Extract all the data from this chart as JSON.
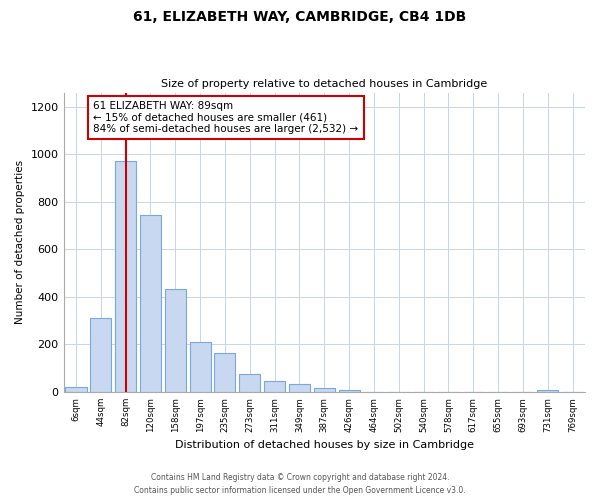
{
  "title": "61, ELIZABETH WAY, CAMBRIDGE, CB4 1DB",
  "subtitle": "Size of property relative to detached houses in Cambridge",
  "xlabel": "Distribution of detached houses by size in Cambridge",
  "ylabel": "Number of detached properties",
  "bar_labels": [
    "6sqm",
    "44sqm",
    "82sqm",
    "120sqm",
    "158sqm",
    "197sqm",
    "235sqm",
    "273sqm",
    "311sqm",
    "349sqm",
    "387sqm",
    "426sqm",
    "464sqm",
    "502sqm",
    "540sqm",
    "578sqm",
    "617sqm",
    "655sqm",
    "693sqm",
    "731sqm",
    "769sqm"
  ],
  "bar_values": [
    20,
    310,
    970,
    745,
    435,
    210,
    165,
    75,
    48,
    32,
    18,
    8,
    0,
    0,
    0,
    0,
    0,
    0,
    0,
    8,
    0
  ],
  "bar_color": "#c8d8f0",
  "bar_edge_color": "#7aa8d8",
  "property_line_index": 2,
  "property_line_color": "#cc0000",
  "annotation_line1": "61 ELIZABETH WAY: 89sqm",
  "annotation_line2": "← 15% of detached houses are smaller (461)",
  "annotation_line3": "84% of semi-detached houses are larger (2,532) →",
  "annotation_box_color": "#ffffff",
  "annotation_box_edge_color": "#cc0000",
  "ylim": [
    0,
    1260
  ],
  "yticks": [
    0,
    200,
    400,
    600,
    800,
    1000,
    1200
  ],
  "footer_line1": "Contains HM Land Registry data © Crown copyright and database right 2024.",
  "footer_line2": "Contains public sector information licensed under the Open Government Licence v3.0.",
  "background_color": "#ffffff",
  "grid_color": "#c8d4e8",
  "bar_width": 0.85
}
